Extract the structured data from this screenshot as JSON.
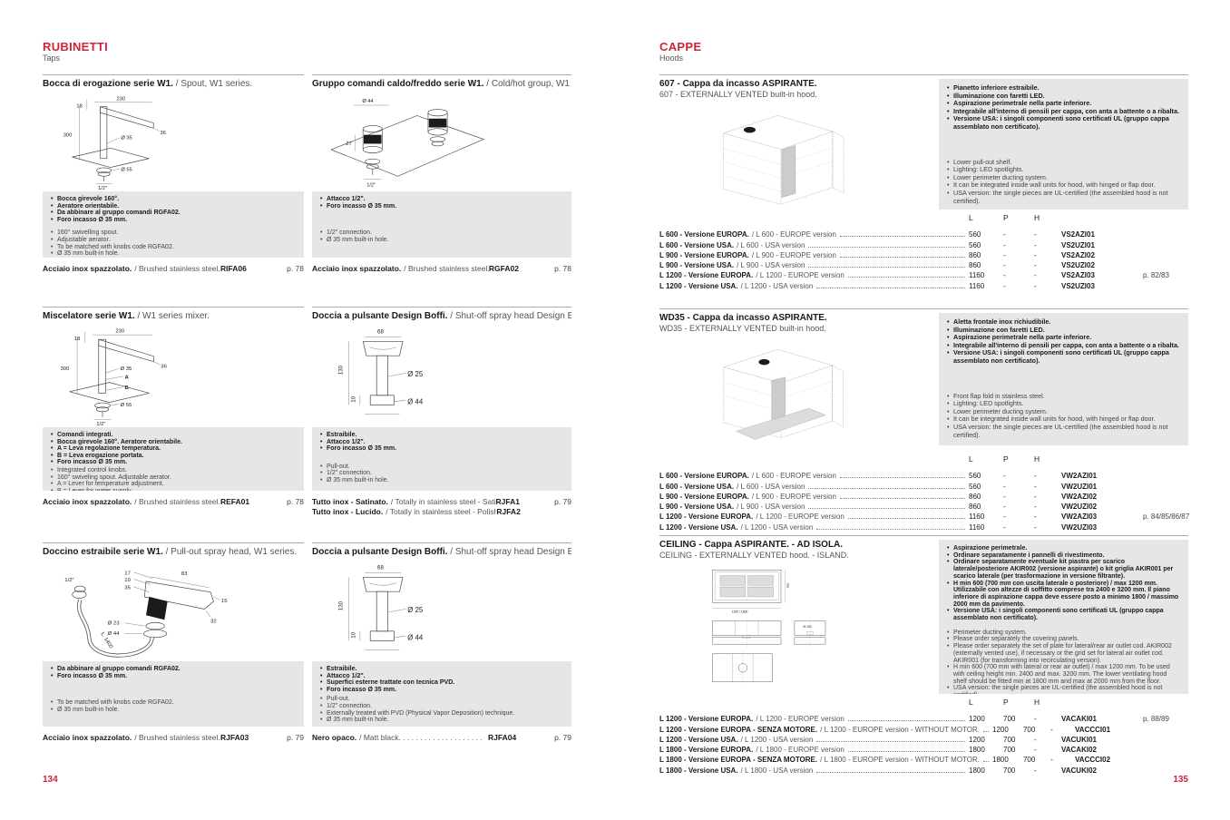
{
  "accent_color": "#cf2339",
  "page_left": {
    "page_number": "134",
    "title": "RUBINETTI",
    "subtitle": "Taps",
    "blocks": [
      {
        "title_it": "Bocca di erogazione serie W1.",
        "title_en": " / Spout, W1 series.",
        "bullets_it": [
          "Bocca girevole 160°.",
          "Aeratore orientabile.",
          "Da abbinare al gruppo comandi RGFA02.",
          "Foro incasso Ø 35 mm."
        ],
        "bullets_en": [
          "160° swivelling spout.",
          "Adjustable aerator.",
          "To be matched with knobs code RGFA02.",
          "Ø 35 mm built-in hole."
        ],
        "drawing_labels": {
          "d1": "18",
          "d2": "230",
          "d3": "300",
          "d4": "36",
          "d5": "Ø 35",
          "d6": "Ø 55",
          "d7": "1/2\""
        },
        "footer": [
          {
            "finish_it": "Acciaio inox spazzolato.",
            "finish_en": "/ Brushed stainless steel.",
            "code": "RIFA06",
            "page": "p. 78"
          }
        ]
      },
      {
        "title_it": "Gruppo comandi caldo/freddo serie W1.",
        "title_en": " / Cold/hot group, W1 series.",
        "bullets_it": [
          "Attacco 1/2\".",
          "Foro incasso Ø 35 mm."
        ],
        "bullets_en": [
          "1/2\" connection.",
          "Ø 35 mm built-in hole."
        ],
        "drawing_labels": {
          "d1": "Ø 44",
          "d2": "27",
          "d3": "1/2\""
        },
        "footer": [
          {
            "finish_it": "Acciaio inox spazzolato.",
            "finish_en": "/ Brushed stainless steel.",
            "code": "RGFA02",
            "page": "p. 78"
          }
        ]
      },
      {
        "title_it": "Miscelatore serie W1.",
        "title_en": " / W1 series mixer.",
        "bullets_it": [
          "Comandi integrati.",
          "Bocca girevole 160°. Aeratore orientabile.",
          "A = Leva regolazione temperatura.",
          "B = Leva erogazione portata.",
          "Foro incasso Ø 35 mm."
        ],
        "bullets_en": [
          "Integrated control knobs.",
          "160° swiveling spout. Adjustable aerator.",
          "A = Lever for temperature adjustment.",
          "B = Lever for water supply.",
          "Ø 35 mm built-in hole."
        ],
        "drawing_labels": {
          "d1": "18",
          "d2": "230",
          "d3": "300",
          "d4": "36",
          "d5": "Ø 35",
          "d6": "A",
          "d7": "B",
          "d8": "Ø 55",
          "d9": "1/2\""
        },
        "footer": [
          {
            "finish_it": "Acciaio inox spazzolato.",
            "finish_en": "/ Brushed stainless steel.",
            "code": "REFA01",
            "page": "p. 78"
          }
        ]
      },
      {
        "title_it": "Doccia a pulsante Design Boffi.",
        "title_en": " / Shut-off spray head Design Boffi.",
        "bullets_it": [
          "Estraibile.",
          "Attacco 1/2\".",
          "Foro incasso Ø 35 mm."
        ],
        "bullets_en": [
          "Pull-out.",
          "1/2\" connection.",
          "Ø 35 mm built-in hole."
        ],
        "drawing_labels": {
          "d1": "68",
          "d2": "130",
          "d3": "10",
          "d4": "Ø 25",
          "d5": "Ø 44"
        },
        "footer": [
          {
            "finish_it": "Tutto inox - Satinato.",
            "finish_en": "/ Totally in stainless steel - Satin. .",
            "code": "RJFA1",
            "page": "p. 79"
          },
          {
            "finish_it": "Tutto inox - Lucido.",
            "finish_en": "/ Totally in stainless steel - Polished.",
            "code": "RJFA2",
            "page": ""
          }
        ]
      },
      {
        "title_it": "Doccino estraibile serie W1.",
        "title_en": " / Pull-out spray head, W1 series.",
        "bullets_it": [
          "Da abbinare al gruppo comandi RGFA02.",
          "Foro incasso Ø 35 mm."
        ],
        "bullets_en": [
          "To be matched with knobs code RGFA02.",
          "Ø 35 mm built-in hole."
        ],
        "drawing_labels": {
          "d1": "1/2\"",
          "d2": "17",
          "d3": "10",
          "d4": "35",
          "d5": "83",
          "d6": "15",
          "d7": "32",
          "d8": "Ø 23",
          "d9": "Ø 44",
          "d10": "L. 1400"
        },
        "footer": [
          {
            "finish_it": "Acciaio inox spazzolato.",
            "finish_en": "/ Brushed stainless steel.",
            "code": "RJFA03",
            "page": "p. 79"
          }
        ]
      },
      {
        "title_it": "Doccia a pulsante Design Boffi.",
        "title_en": " / Shut-off spray head Design Boffi.",
        "bullets_it": [
          "Estraibile.",
          "Attacco 1/2\".",
          "Superfici esterne trattate con tecnica PVD.",
          "Foro incasso Ø 35 mm."
        ],
        "bullets_en": [
          "Pull-out.",
          "1/2\" connection.",
          "Externally treated with PVD (Physical Vapor Deposition) technique.",
          "Ø 35 mm built-in hole."
        ],
        "drawing_labels": {
          "d1": "68",
          "d2": "130",
          "d3": "10",
          "d4": "Ø 25",
          "d5": "Ø 44"
        },
        "footer": [
          {
            "finish_it": "Nero opaco.",
            "finish_en": "/ Matt black. . . . . . . . . . . . . . . . . . . .",
            "code": "RJFA04",
            "page": "p. 79"
          }
        ]
      }
    ]
  },
  "page_right": {
    "page_number": "135",
    "title": "CAPPE",
    "subtitle": "Hoods",
    "table_headers": [
      "L",
      "P",
      "H"
    ],
    "blocks": [
      {
        "title_it": "607 - Cappa da incasso ASPIRANTE.",
        "title_en": "607 - EXTERNALLY VENTED built-in hood.",
        "bullets_it": [
          "Pianetto inferiore estraibile.",
          "Illuminazione con faretti LED.",
          "Aspirazione perimetrale nella parte inferiore.",
          "Integrabile all'interno di pensili per cappa, con anta a battente o a ribalta.",
          "Versione USA: i singoli componenti sono certificati UL (gruppo cappa assemblato non certificato)."
        ],
        "bullets_en": [
          "Lower pull-out shelf.",
          "Lighting: LED spotlights.",
          "Lower perimeter ducting system.",
          "It can be integrated inside wall units for hood, with hinged or flap door.",
          "USA version: the single pieces are UL-certified (the assembled hood is not certified)."
        ],
        "rows": [
          {
            "label_it": "L 600 - Versione EUROPA.",
            "label_en": "/ L 600 - EUROPE version",
            "l": "560",
            "p": "-",
            "h": "-",
            "code": "VS2AZI01",
            "page": ""
          },
          {
            "label_it": "L 600 - Versione USA.",
            "label_en": "/ L 600 - USA version",
            "l": "560",
            "p": "-",
            "h": "-",
            "code": "VS2UZI01",
            "page": ""
          },
          {
            "label_it": "L 900 - Versione EUROPA.",
            "label_en": "/ L 900 - EUROPE version",
            "l": "860",
            "p": "-",
            "h": "-",
            "code": "VS2AZI02",
            "page": ""
          },
          {
            "label_it": "L 900 - Versione USA.",
            "label_en": "/ L 900 - USA version",
            "l": "860",
            "p": "-",
            "h": "-",
            "code": "VS2UZI02",
            "page": ""
          },
          {
            "label_it": "L 1200 - Versione EUROPA.",
            "label_en": "/ L 1200 - EUROPE version",
            "l": "1160",
            "p": "-",
            "h": "-",
            "code": "VS2AZI03",
            "page": "p. 82/83"
          },
          {
            "label_it": "L 1200 - Versione USA.",
            "label_en": "/ L 1200 - USA version",
            "l": "1160",
            "p": "-",
            "h": "-",
            "code": "VS2UZI03",
            "page": ""
          }
        ]
      },
      {
        "title_it": "WD35 - Cappa da incasso ASPIRANTE.",
        "title_en": "WD35 - EXTERNALLY VENTED built-in hood.",
        "bullets_it": [
          "Aletta frontale inox richiudibile.",
          "Illuminazione con faretti LED.",
          "Aspirazione perimetrale nella parte inferiore.",
          "Integrabile all'interno di pensili per cappa, con anta a battente o a ribalta.",
          "Versione USA: i singoli componenti sono certificati UL (gruppo cappa assemblato non certificato)."
        ],
        "bullets_en": [
          "Front flap fold in stainless steel.",
          "Lighting: LED spotlights.",
          "Lower perimeter ducting system.",
          "It can be integrated inside wall units for hood, with hinged or flap door.",
          "USA version: the single pieces are UL-certified (the assembled hood is not certified)."
        ],
        "rows": [
          {
            "label_it": "L 600 - Versione EUROPA.",
            "label_en": "/ L 600 - EUROPE version",
            "l": "560",
            "p": "-",
            "h": "-",
            "code": "VW2AZI01",
            "page": ""
          },
          {
            "label_it": "L 600 - Versione USA.",
            "label_en": "/ L 600 - USA version",
            "l": "560",
            "p": "-",
            "h": "-",
            "code": "VW2UZI01",
            "page": ""
          },
          {
            "label_it": "L 900 - Versione EUROPA.",
            "label_en": "/ L 900 - EUROPE version",
            "l": "860",
            "p": "-",
            "h": "-",
            "code": "VW2AZI02",
            "page": ""
          },
          {
            "label_it": "L 900 - Versione USA.",
            "label_en": "/ L 900 - USA version",
            "l": "860",
            "p": "-",
            "h": "-",
            "code": "VW2UZI02",
            "page": ""
          },
          {
            "label_it": "L 1200 - Versione EUROPA.",
            "label_en": "/ L 1200 - EUROPE version",
            "l": "1160",
            "p": "-",
            "h": "-",
            "code": "VW2AZI03",
            "page": "p. 84/85/86/87"
          },
          {
            "label_it": "L 1200 - Versione USA.",
            "label_en": "/ L 1200 - USA version",
            "l": "1160",
            "p": "-",
            "h": "-",
            "code": "VW2UZI03",
            "page": ""
          }
        ]
      },
      {
        "title_it": "CEILING - Cappa ASPIRANTE. - AD ISOLA.",
        "title_en": "CEILING - EXTERNALLY VENTED hood. - ISLAND.",
        "drawing_labels": {
          "d1": "1200 / 1800",
          "d2": "700",
          "d3": "Ø 150"
        },
        "bullets_it": [
          "Aspirazione perimetrale.",
          "Ordinare separatamente i pannelli di rivestimento.",
          "Ordinare separatamente eventuale kit piastra per scarico laterale/posteriore AKIR002 (versione aspirante) o kit griglia AKIR001 per scarico laterale (per trasformazione in versione filtrante).",
          "H min 600 (700 mm con uscita laterale o posteriore) / max 1200 mm. Utilizzabile con altezze di soffitto comprese tra 2400 e 3200 mm. Il piano inferiore di aspirazione cappa deve essere posto a minimo 1800 / massimo 2000 mm da pavimento.",
          "Versione USA: i singoli componenti sono certificati UL (gruppo cappa assemblato non certificato)."
        ],
        "bullets_en": [
          "Perimeter ducting system.",
          "Please order separately the covering panels.",
          "Please order separately the set of plate for lateral/rear air outlet cod. AKIR002 (externally vented use), if necessary or the grid set for lateral air outlet cod. AKIR001 (for transforming into recirculating version).",
          "H min 600 (700 mm with lateral or rear air outlet) / max 1200 mm. To be used with ceiling height min. 2400 and max. 3200 mm. The lower ventilating hood shelf should be fitted min at 1800 mm and max at 2000 mm from the floor.",
          "USA version: the single pieces are UL-certified (the assembled hood is not certified)."
        ],
        "rows": [
          {
            "label_it": "L 1200 - Versione EUROPA.",
            "label_en": "/ L 1200 - EUROPE version",
            "l": "1200",
            "p": "700",
            "h": "-",
            "code": "VACAKI01",
            "page": "p. 88/89"
          },
          {
            "label_it": "L 1200 - Versione EUROPA - SENZA MOTORE.",
            "label_en": "/ L 1200 - EUROPE version - WITHOUT MOTOR.",
            "l": "1200",
            "p": "700",
            "h": "-",
            "code": "VACCCI01",
            "page": ""
          },
          {
            "label_it": "L 1200 - Versione USA.",
            "label_en": "/ L 1200 - USA version",
            "l": "1200",
            "p": "700",
            "h": "-",
            "code": "VACUKI01",
            "page": ""
          },
          {
            "label_it": "L 1800 - Versione EUROPA.",
            "label_en": "/ L 1800 - EUROPE version",
            "l": "1800",
            "p": "700",
            "h": "-",
            "code": "VACAKI02",
            "page": ""
          },
          {
            "label_it": "L 1800 - Versione EUROPA - SENZA MOTORE.",
            "label_en": "/ L 1800 - EUROPE version - WITHOUT MOTOR.",
            "l": "1800",
            "p": "700",
            "h": "-",
            "code": "VACCCI02",
            "page": ""
          },
          {
            "label_it": "L 1800 - Versione USA.",
            "label_en": "/ L 1800 - USA version",
            "l": "1800",
            "p": "700",
            "h": "-",
            "code": "VACUKI02",
            "page": ""
          }
        ]
      }
    ]
  }
}
